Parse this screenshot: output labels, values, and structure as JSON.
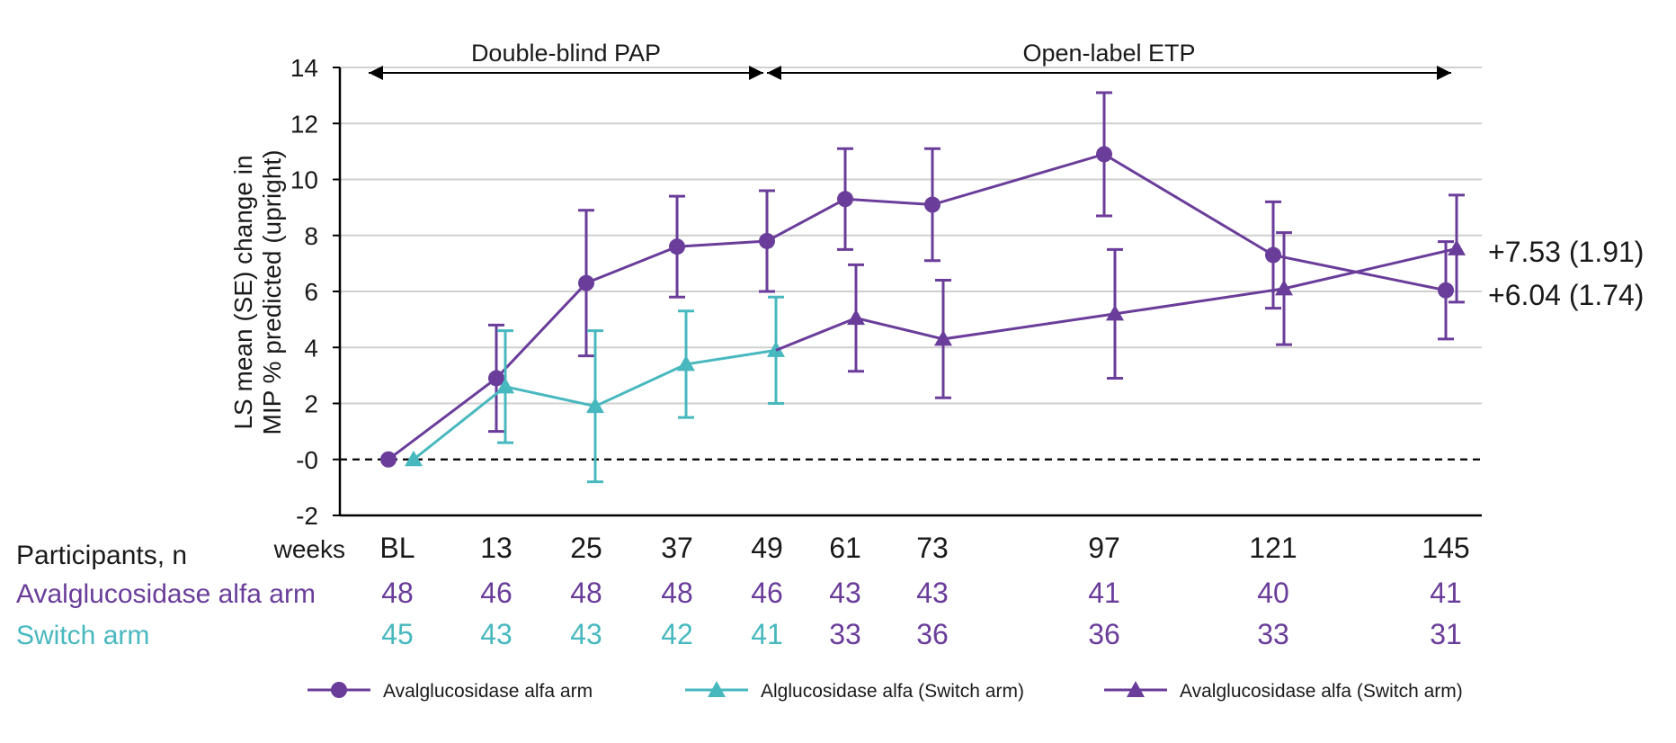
{
  "colors": {
    "avalglucosidase": "#6a3d9a",
    "switch": "#48b8bf",
    "axis": "#000000",
    "grid": "#d0d0d0",
    "text": "#1a1a1a"
  },
  "chart_data": {
    "type": "line",
    "ylabel_line1": "LS mean (SE) change in",
    "ylabel_line2": "MIP % predicted (upright)",
    "ylim": [
      -2,
      14
    ],
    "yticks": [
      -2,
      0,
      2,
      4,
      6,
      8,
      10,
      12,
      14
    ],
    "ytick_labels": [
      "-2",
      "-0",
      "2",
      "4",
      "6",
      "8",
      "10",
      "12",
      "14"
    ],
    "x_unit_label": "weeks",
    "x": [
      0,
      13,
      25,
      37,
      49,
      61,
      73,
      97,
      121,
      145
    ],
    "x_labels": [
      "BL",
      "13",
      "25",
      "37",
      "49",
      "61",
      "73",
      "97",
      "121",
      "145"
    ],
    "grid": true,
    "zero_line": "dashed",
    "periods": [
      {
        "label": "Double-blind PAP",
        "start": -4,
        "end": 49
      },
      {
        "label": "Open-label ETP",
        "start": 49,
        "end": 145
      }
    ],
    "series": [
      {
        "name": "Avalglucosidase alfa arm",
        "color_key": "avalglucosidase",
        "marker": "circle",
        "x": [
          0,
          13,
          25,
          37,
          49,
          61,
          73,
          97,
          121,
          145
        ],
        "y": [
          0,
          2.9,
          6.3,
          7.6,
          7.8,
          9.3,
          9.1,
          10.9,
          7.3,
          6.04
        ],
        "se": [
          0,
          1.9,
          2.6,
          1.8,
          1.8,
          1.8,
          2.0,
          2.2,
          1.9,
          1.74
        ]
      },
      {
        "name": "Alglucosidase alfa (Switch arm)",
        "color_key": "switch",
        "marker": "triangle",
        "x": [
          0,
          13,
          25,
          37,
          49
        ],
        "y": [
          0,
          2.6,
          1.9,
          3.4,
          3.9
        ],
        "se": [
          0,
          2.0,
          2.7,
          1.9,
          1.9
        ]
      },
      {
        "name": "Avalglucosidase alfa (Switch arm)",
        "color_key": "avalglucosidase",
        "marker": "triangle",
        "x": [
          49,
          61,
          73,
          97,
          121,
          145
        ],
        "y": [
          3.9,
          5.05,
          4.3,
          5.2,
          6.1,
          7.53
        ],
        "se": [
          0,
          1.9,
          2.1,
          2.3,
          2.0,
          1.91
        ]
      }
    ],
    "annotations": [
      {
        "text": "+7.53 (1.91)",
        "series": 2,
        "y": 7.53
      },
      {
        "text": "+6.04 (1.74)",
        "series": 0,
        "y": 6.04
      }
    ],
    "legend_position": "bottom"
  },
  "participants": {
    "header": "Participants, n",
    "rows": [
      {
        "label": "Avalglucosidase alfa arm",
        "values": [
          "48",
          "46",
          "48",
          "48",
          "46",
          "43",
          "43",
          "41",
          "40",
          "41"
        ],
        "colors": [
          "avalglucosidase",
          "avalglucosidase",
          "avalglucosidase",
          "avalglucosidase",
          "avalglucosidase",
          "avalglucosidase",
          "avalglucosidase",
          "avalglucosidase",
          "avalglucosidase",
          "avalglucosidase"
        ]
      },
      {
        "label": "Switch arm",
        "values": [
          "45",
          "43",
          "43",
          "42",
          "41",
          "33",
          "36",
          "36",
          "33",
          "31"
        ],
        "colors": [
          "switch",
          "switch",
          "switch",
          "switch",
          "switch",
          "avalglucosidase",
          "avalglucosidase",
          "avalglucosidase",
          "avalglucosidase",
          "avalglucosidase"
        ]
      }
    ]
  }
}
